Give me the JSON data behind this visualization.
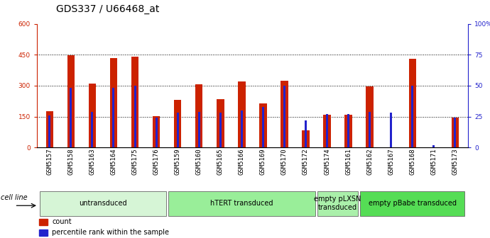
{
  "title": "GDS337 / U66468_at",
  "samples": [
    "GSM5157",
    "GSM5158",
    "GSM5163",
    "GSM5164",
    "GSM5175",
    "GSM5176",
    "GSM5159",
    "GSM5160",
    "GSM5165",
    "GSM5166",
    "GSM5169",
    "GSM5170",
    "GSM5172",
    "GSM5174",
    "GSM5161",
    "GSM5162",
    "GSM5167",
    "GSM5168",
    "GSM5171",
    "GSM5173"
  ],
  "count_values": [
    175,
    447,
    310,
    435,
    440,
    152,
    232,
    308,
    233,
    320,
    215,
    323,
    85,
    160,
    158,
    295,
    2,
    430,
    2,
    145
  ],
  "percentile_values": [
    26,
    48,
    29,
    48,
    50,
    24,
    28,
    29,
    28,
    30,
    33,
    50,
    22,
    27,
    27,
    29,
    28,
    50,
    2,
    24
  ],
  "bar_color": "#cc2200",
  "percentile_color": "#2222cc",
  "ylim_left": [
    0,
    600
  ],
  "ylim_right": [
    0,
    100
  ],
  "yticks_left": [
    0,
    150,
    300,
    450,
    600
  ],
  "ytick_labels_left": [
    "0",
    "150",
    "300",
    "450",
    "600"
  ],
  "yticks_right": [
    0,
    25,
    50,
    75,
    100
  ],
  "ytick_labels_right": [
    "0",
    "25",
    "50",
    "75",
    "100%"
  ],
  "groups": [
    {
      "label": "untransduced",
      "start": 0,
      "end": 6,
      "color": "#d6f5d6"
    },
    {
      "label": "hTERT transduced",
      "start": 6,
      "end": 13,
      "color": "#99ee99"
    },
    {
      "label": "empty pLXSN\ntransduced",
      "start": 13,
      "end": 15,
      "color": "#aaf0aa"
    },
    {
      "label": "empty pBabe transduced",
      "start": 15,
      "end": 20,
      "color": "#55dd55"
    }
  ],
  "group_row_label": "cell line",
  "legend_count_label": "count",
  "legend_percentile_label": "percentile rank within the sample",
  "bg_color": "#ffffff",
  "title_fontsize": 10,
  "tick_label_fontsize": 6.5,
  "group_label_fontsize": 7
}
